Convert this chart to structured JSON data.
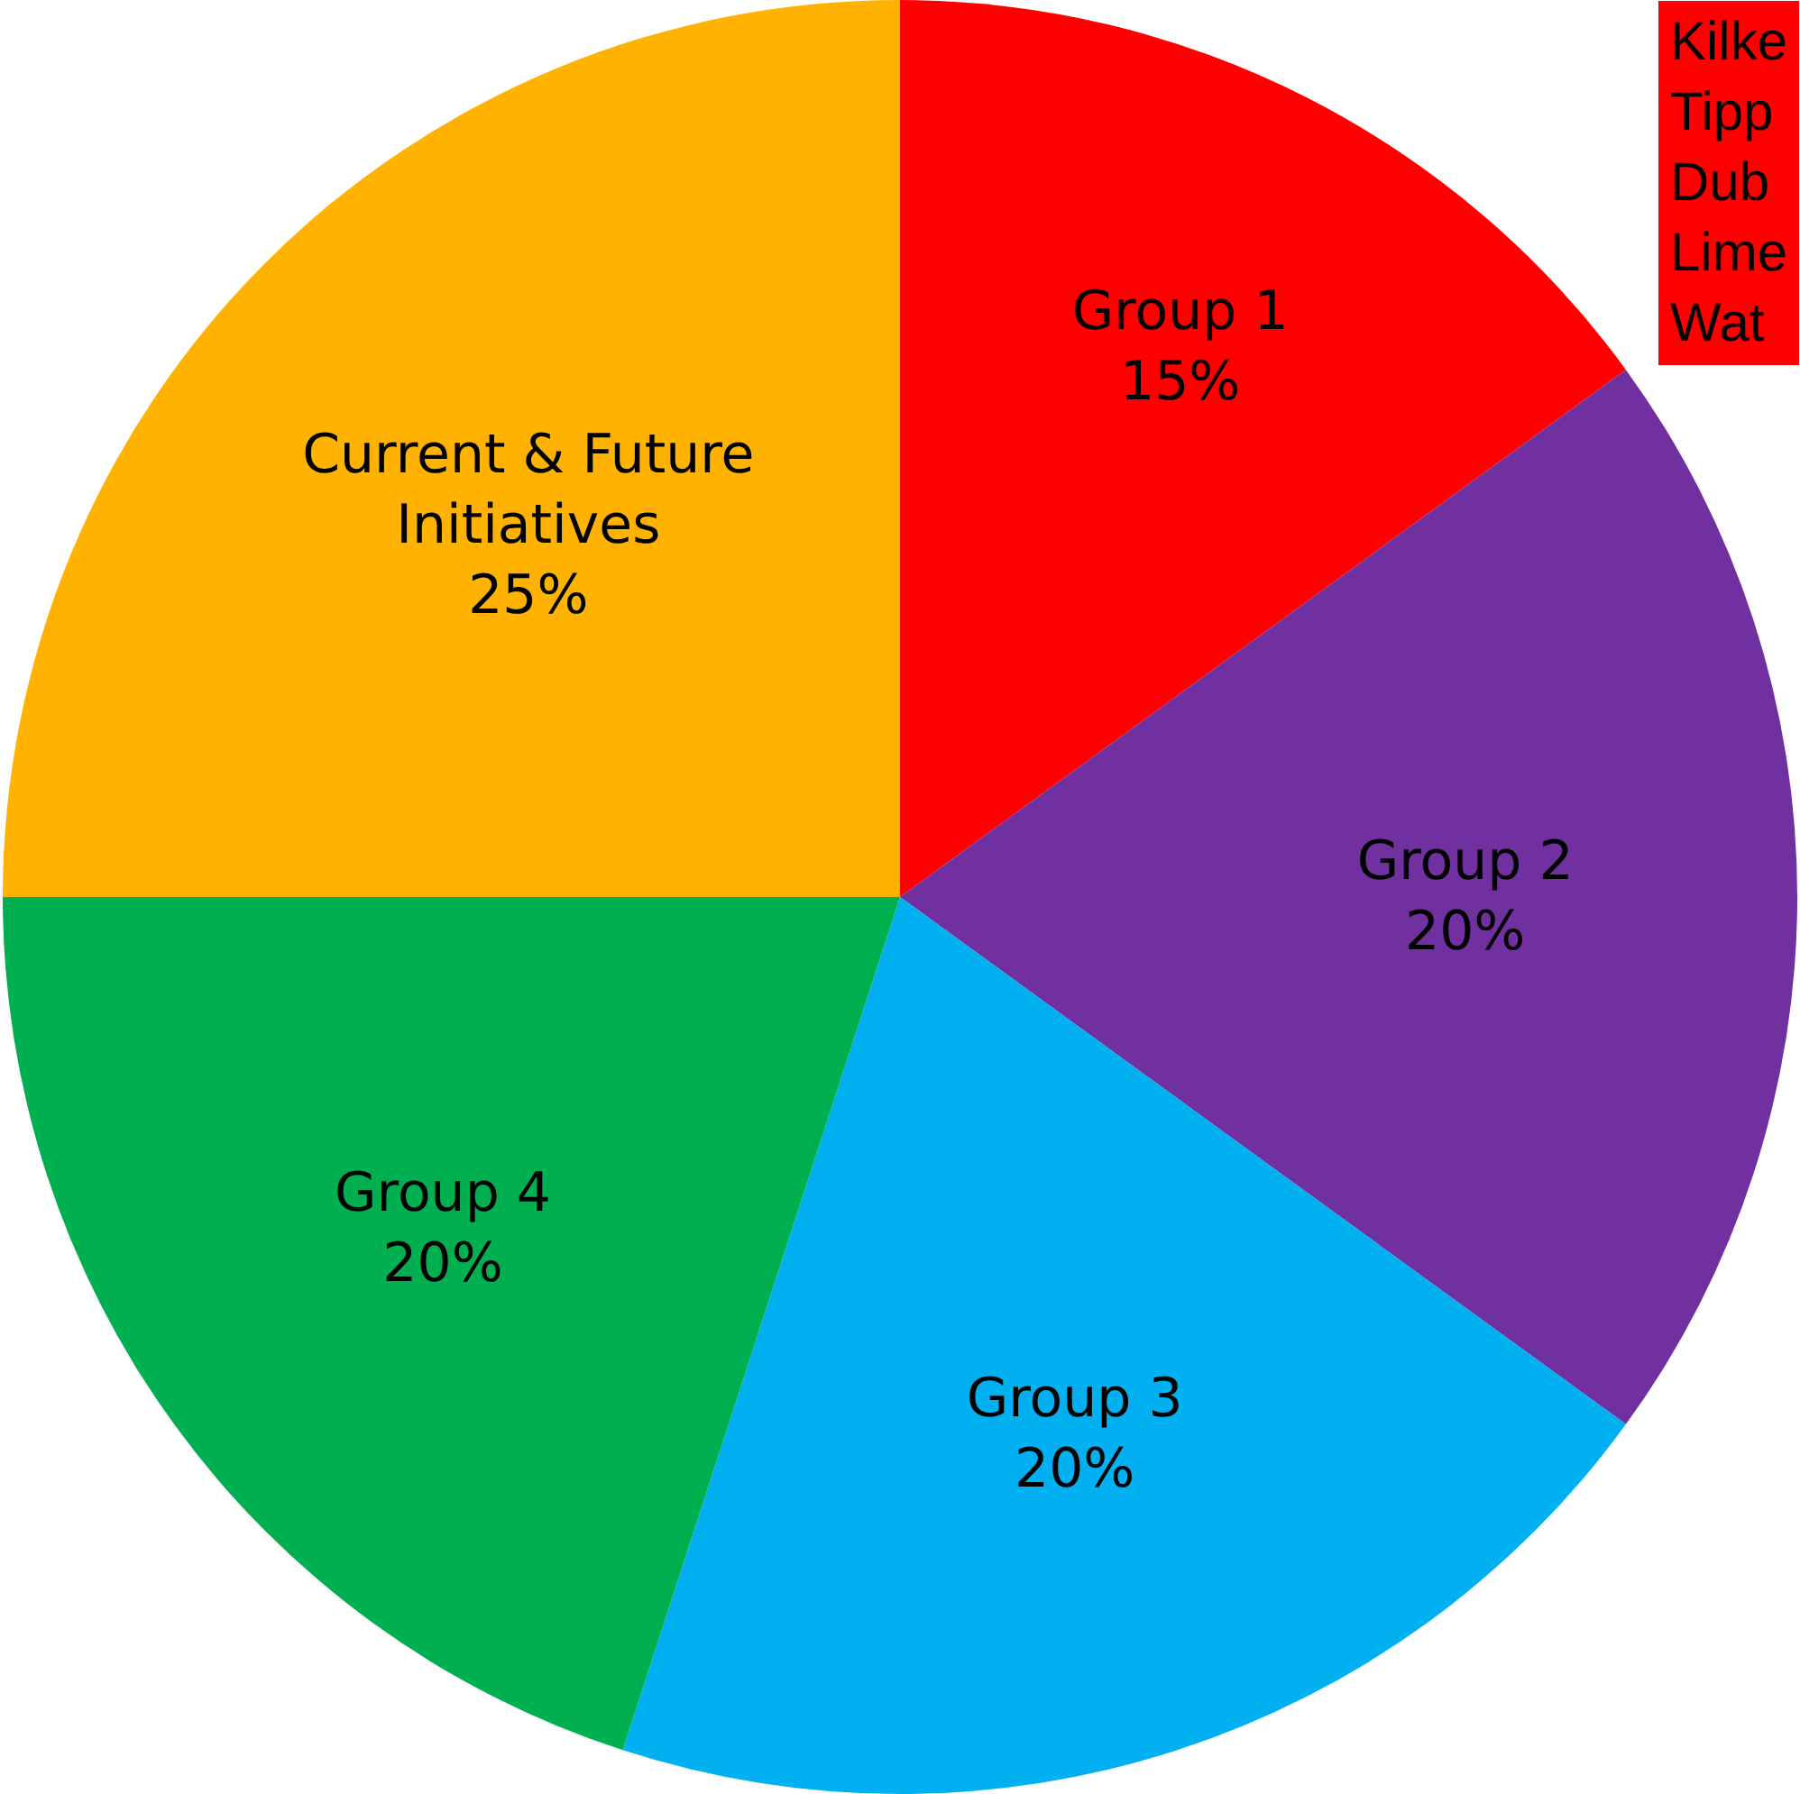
{
  "chart_data": {
    "type": "pie",
    "categories": [
      "Group 1",
      "Group 2",
      "Group 3",
      "Group 4",
      "Current & Future Initiatives"
    ],
    "values": [
      15,
      20,
      20,
      20,
      25
    ],
    "value_labels": [
      "15%",
      "20%",
      "20%",
      "20%",
      "25%"
    ],
    "colors": [
      "#ff0000",
      "#7030a0",
      "#00b0f0",
      "#00b050",
      "#ffb300"
    ],
    "annotations": [
      "Kilke\nTipp\nDub\nLime\nWat"
    ],
    "legend": false
  }
}
